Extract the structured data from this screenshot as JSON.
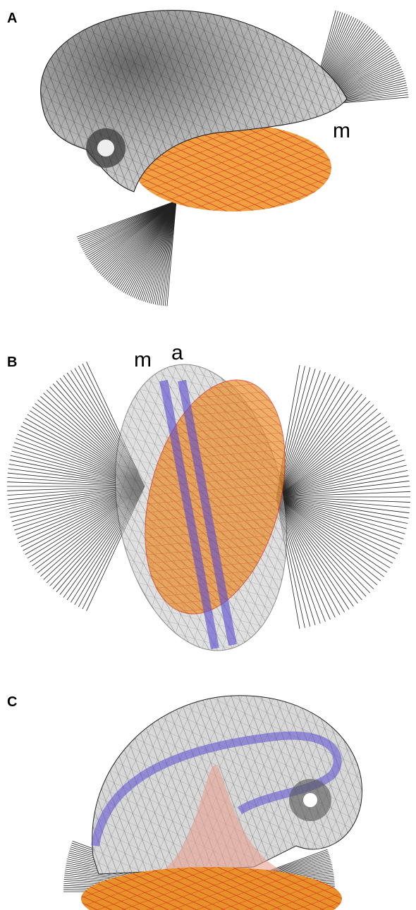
{
  "panels": [
    {
      "label": "A",
      "annotations": [
        "m"
      ]
    },
    {
      "label": "B",
      "annotations": [
        "m",
        "a"
      ]
    },
    {
      "label": "C"
    }
  ]
}
